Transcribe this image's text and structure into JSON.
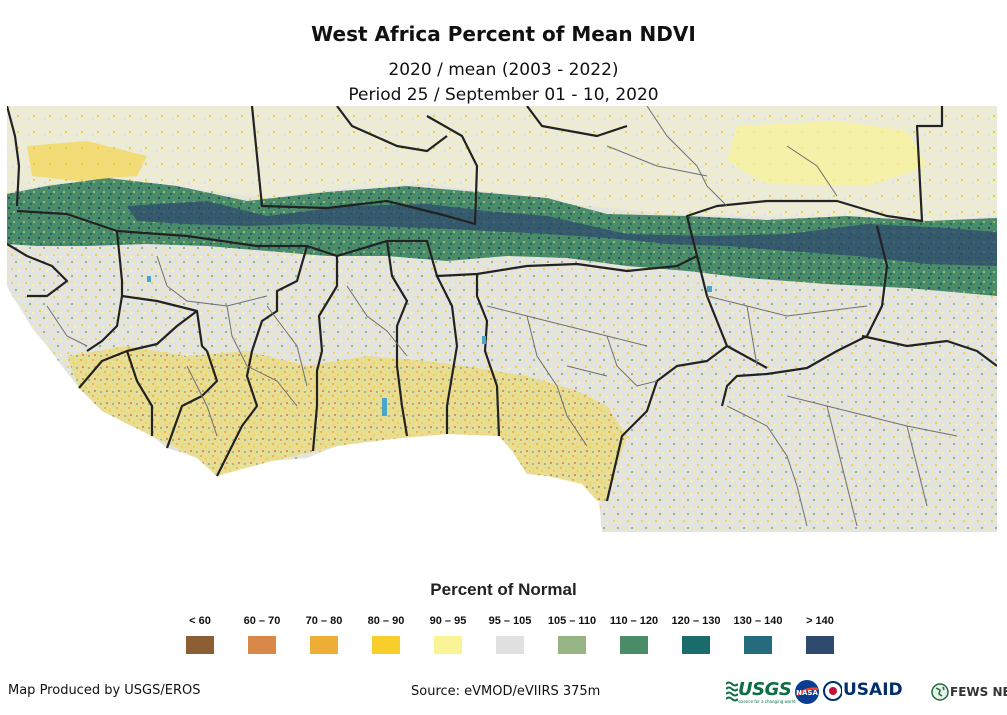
{
  "title": "West Africa Percent of Mean NDVI",
  "subtitle_line1": "2020 / mean (2003 - 2022)",
  "subtitle_line2": "Period 25 / September 01 - 10, 2020",
  "legend": {
    "title": "Percent of Normal",
    "items": [
      {
        "label": "< 60",
        "color": "#8b5e34"
      },
      {
        "label": "60 – 70",
        "color": "#d9884a"
      },
      {
        "label": "70 – 80",
        "color": "#eeae36"
      },
      {
        "label": "80 – 90",
        "color": "#f8cf2a"
      },
      {
        "label": "90 – 95",
        "color": "#fbf496"
      },
      {
        "label": "95 – 105",
        "color": "#e1e1e1"
      },
      {
        "label": "105 – 110",
        "color": "#97b584"
      },
      {
        "label": "110 – 120",
        "color": "#4b8c68"
      },
      {
        "label": "120 – 130",
        "color": "#1a6b6b"
      },
      {
        "label": "130 – 140",
        "color": "#246b7e"
      },
      {
        "label": "> 140",
        "color": "#2e4a6e"
      }
    ]
  },
  "footer": {
    "credit": "Map Produced by USGS/EROS",
    "source": "Source: eVMOD/eVIIRS 375m"
  },
  "logos": {
    "usgs": "USGS",
    "usgs_tagline": "science for a changing world",
    "nasa": "NASA",
    "usaid": "USAID",
    "fews": "FEWS NET"
  },
  "colors": {
    "background_land": "#e1e1e1",
    "ocean": "#ffffff",
    "border": "#222222",
    "admin_border": "#6f6f6f"
  }
}
